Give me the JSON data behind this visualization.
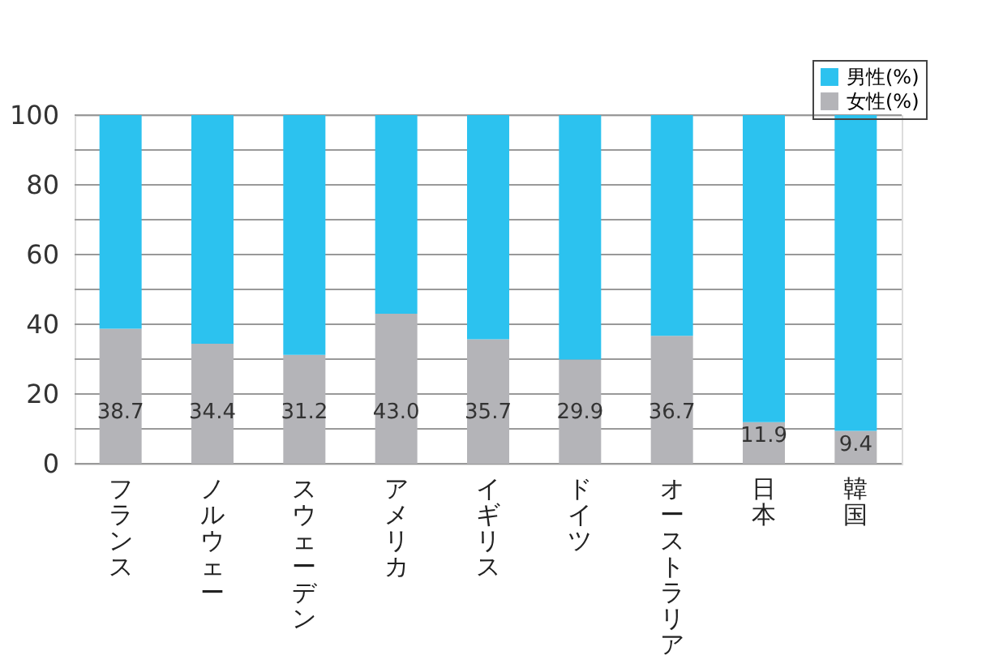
{
  "chart_data": {
    "type": "bar",
    "stacked": true,
    "categories": [
      "フランス",
      "ノルウェー",
      "スウェーデン",
      "アメリカ",
      "イギリス",
      "ドイツ",
      "オーストラリア",
      "日本",
      "韓国"
    ],
    "series": [
      {
        "name": "女性(%)",
        "color": "#b4b4b8",
        "values": [
          38.7,
          34.4,
          31.2,
          43.0,
          35.7,
          29.9,
          36.7,
          11.9,
          9.4
        ],
        "value_labels": [
          "38.7",
          "34.4",
          "31.2",
          "43.0",
          "35.7",
          "29.9",
          "36.7",
          "11.9",
          "9.4"
        ]
      },
      {
        "name": "男性(%)",
        "color": "#2cc2ef",
        "values": [
          61.3,
          65.6,
          68.8,
          57.0,
          64.3,
          70.1,
          63.3,
          88.1,
          90.6
        ]
      }
    ],
    "ylim": [
      0,
      100
    ],
    "yticks": [
      0,
      {
        "value": 10,
        "label": null
      },
      20,
      {
        "value": 30,
        "label": null
      },
      40,
      {
        "value": 50,
        "label": null
      },
      60,
      {
        "value": 70,
        "label": null
      },
      80,
      {
        "value": 90,
        "label": null
      },
      100
    ],
    "grid": "y",
    "legend": "top right"
  }
}
